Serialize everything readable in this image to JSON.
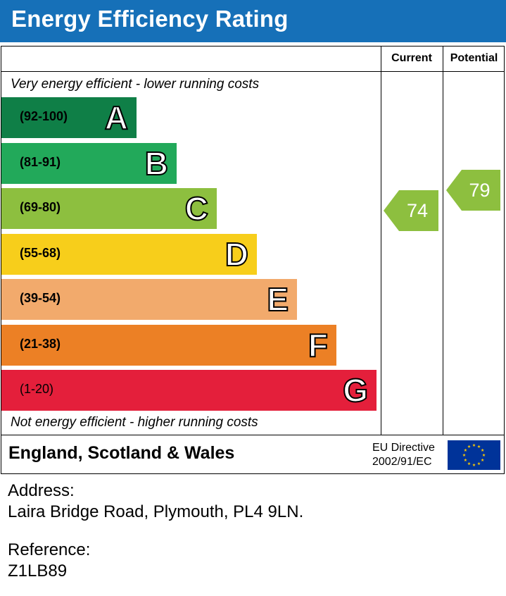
{
  "title": "Energy Efficiency Rating",
  "columns": {
    "current": "Current",
    "potential": "Potential"
  },
  "notes": {
    "top": "Very energy efficient - lower running costs",
    "bottom": "Not energy efficient - higher running costs"
  },
  "footer": {
    "country": "England, Scotland & Wales",
    "eu_line1": "EU Directive",
    "eu_line2": "2002/91/EC"
  },
  "address": {
    "label": "Address:",
    "value": "Laira Bridge Road, Plymouth, PL4 9LN."
  },
  "reference": {
    "label": "Reference:",
    "value": "Z1LB89"
  },
  "chart_data": {
    "type": "bar",
    "categories": [
      "A",
      "B",
      "C",
      "D",
      "E",
      "F",
      "G"
    ],
    "bands": [
      {
        "letter": "A",
        "range": "(92-100)",
        "min": 92,
        "max": 100,
        "color": "#0f7f47"
      },
      {
        "letter": "B",
        "range": "(81-91)",
        "min": 81,
        "max": 91,
        "color": "#22a95a"
      },
      {
        "letter": "C",
        "range": "(69-80)",
        "min": 69,
        "max": 80,
        "color": "#8dbf3f"
      },
      {
        "letter": "D",
        "range": "(55-68)",
        "min": 55,
        "max": 68,
        "color": "#f7ce1b"
      },
      {
        "letter": "E",
        "range": "(39-54)",
        "min": 39,
        "max": 54,
        "color": "#f2aa6c"
      },
      {
        "letter": "F",
        "range": "(21-38)",
        "min": 21,
        "max": 38,
        "color": "#ec8025"
      },
      {
        "letter": "G",
        "range": "(1-20)",
        "min": 1,
        "max": 20,
        "color": "#e41f3b"
      }
    ],
    "ratings": [
      {
        "name": "Current",
        "value": 74,
        "band": "C",
        "color": "#8dbf3f"
      },
      {
        "name": "Potential",
        "value": 79,
        "band": "C",
        "color": "#8dbf3f"
      }
    ]
  }
}
